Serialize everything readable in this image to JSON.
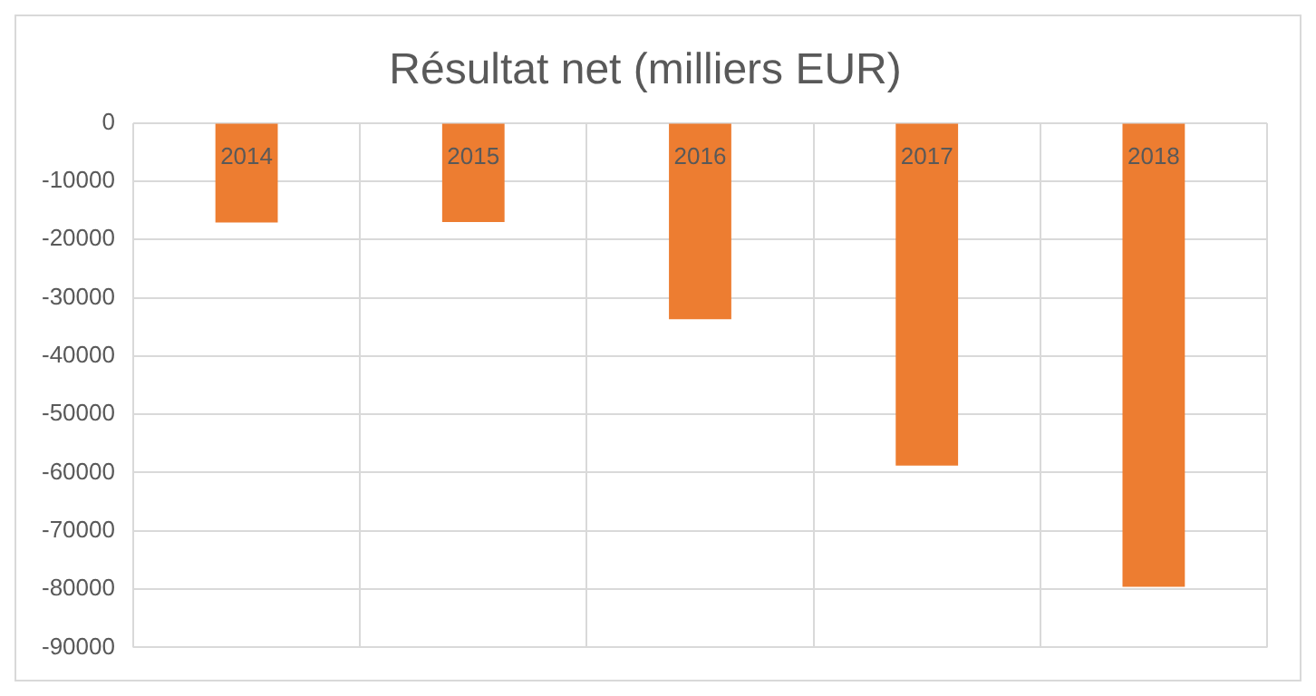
{
  "chart_data": {
    "type": "bar",
    "title": "Résultat net (milliers EUR)",
    "categories": [
      "2014",
      "2015",
      "2016",
      "2017",
      "2018"
    ],
    "values": [
      -17100,
      -17000,
      -33700,
      -58800,
      -79600
    ],
    "color": "#ed7d31",
    "ylim": [
      -90000,
      0
    ],
    "yticks": [
      0,
      -10000,
      -20000,
      -30000,
      -40000,
      -50000,
      -60000,
      -70000,
      -80000,
      -90000
    ],
    "grid": true,
    "legend": false
  }
}
